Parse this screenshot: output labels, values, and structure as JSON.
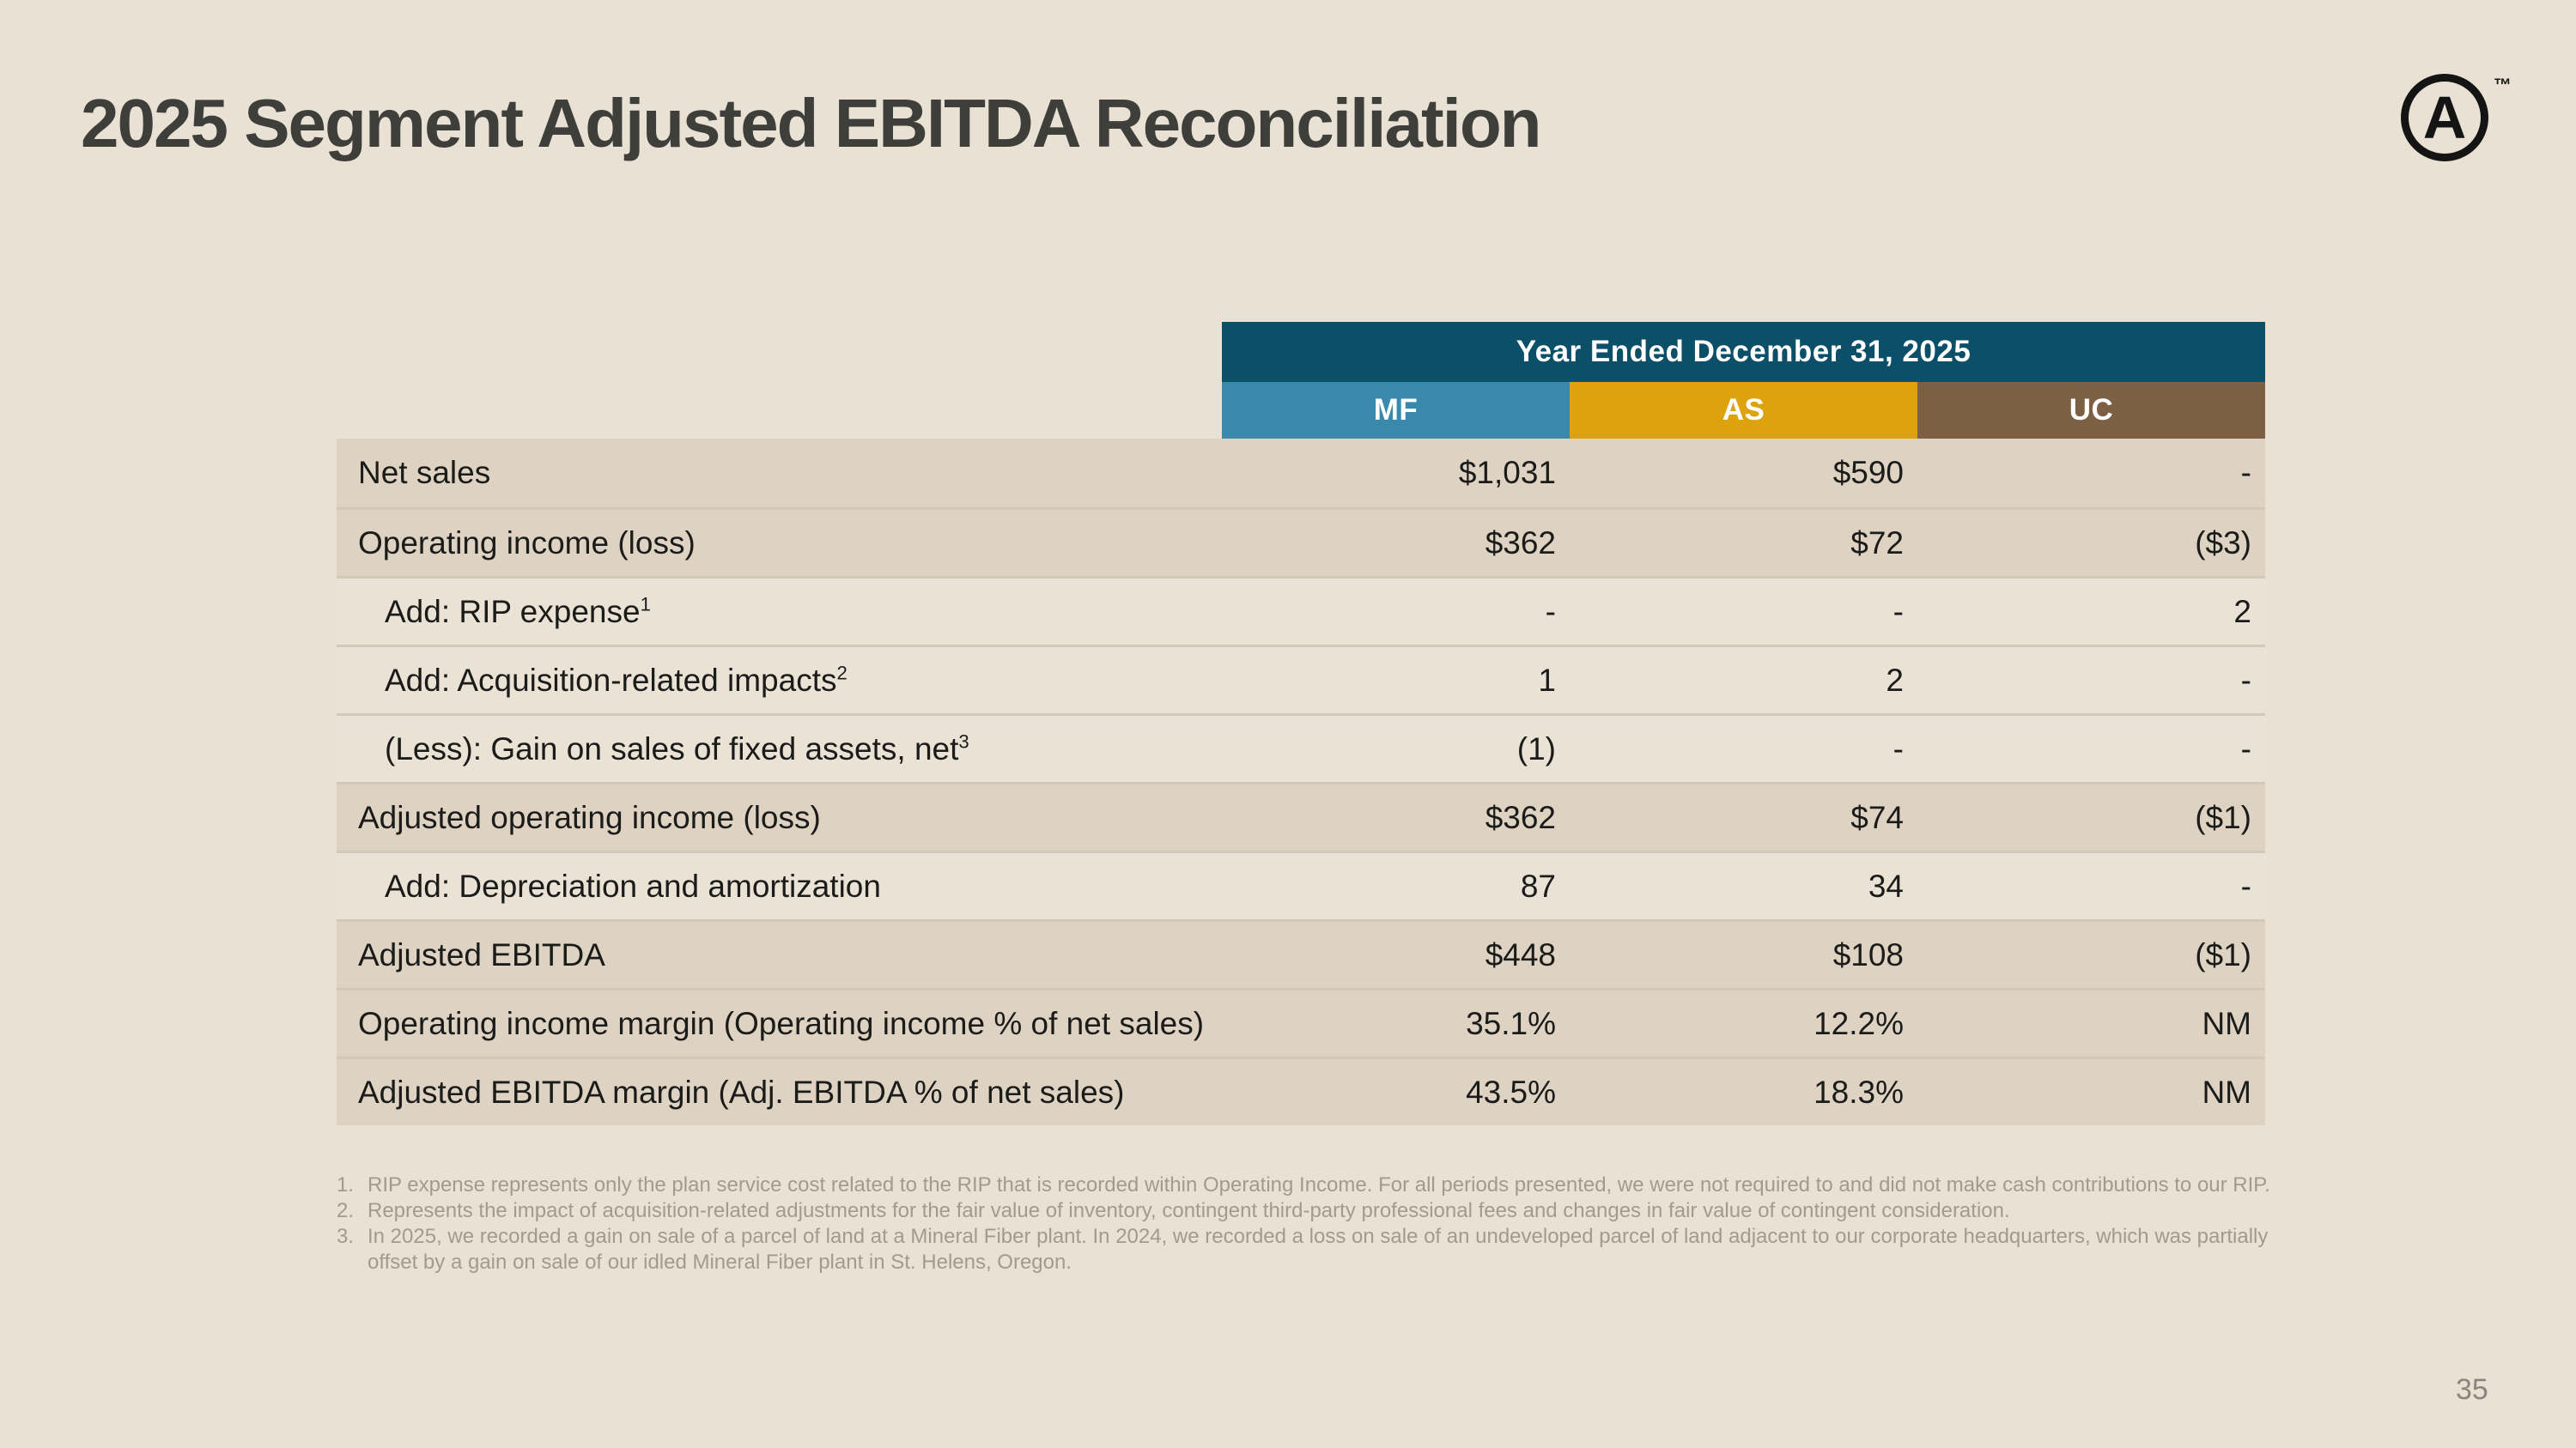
{
  "slide": {
    "title": "2025 Segment Adjusted EBITDA Reconciliation",
    "page_number": "35",
    "logo": {
      "letter": "A",
      "trademark": "™"
    },
    "colors": {
      "background": "#e9e2d4",
      "title_text": "#3e3e3b",
      "year_header": "#0b4f68",
      "row_dark": "#ded3c2",
      "row_light": "#eae3d5",
      "footnote_text": "#a19b8f"
    }
  },
  "table": {
    "year_header": "Year Ended December 31, 2025",
    "columns": [
      {
        "label": "MF",
        "color": "#3989ad"
      },
      {
        "label": "AS",
        "color": "#dfa20f"
      },
      {
        "label": "UC",
        "color": "#7d5f44"
      }
    ],
    "rows": [
      {
        "label": "Net sales",
        "ref": "",
        "mf": "$1,031",
        "as": "$590",
        "uc": "-"
      },
      {
        "label": "Operating income (loss)",
        "ref": "",
        "mf": "$362",
        "as": "$72",
        "uc": "($3)"
      },
      {
        "label": "Add: RIP expense",
        "ref": "1",
        "mf": "-",
        "as": "-",
        "uc": "2"
      },
      {
        "label": "Add: Acquisition-related impacts",
        "ref": "2",
        "mf": "1",
        "as": "2",
        "uc": "-"
      },
      {
        "label": "(Less): Gain on sales of fixed assets, net",
        "ref": "3",
        "mf": "(1)",
        "as": "-",
        "uc": "-"
      },
      {
        "label": "Adjusted operating income (loss)",
        "ref": "",
        "mf": "$362",
        "as": "$74",
        "uc": "($1)"
      },
      {
        "label": "Add: Depreciation and amortization",
        "ref": "",
        "mf": "87",
        "as": "34",
        "uc": "-"
      },
      {
        "label": "Adjusted EBITDA",
        "ref": "",
        "mf": "$448",
        "as": "$108",
        "uc": "($1)"
      },
      {
        "label": "Operating income margin (Operating income % of net sales)",
        "ref": "",
        "mf": "35.1%",
        "as": "12.2%",
        "uc": "NM"
      },
      {
        "label": "Adjusted EBITDA margin (Adj. EBITDA % of net sales)",
        "ref": "",
        "mf": "43.5%",
        "as": "18.3%",
        "uc": "NM"
      }
    ]
  },
  "footnotes": [
    {
      "num": "1.",
      "text": "RIP expense represents only the plan service cost related to the RIP that is recorded within Operating Income. For all periods presented, we were not required to and did not make cash contributions to our RIP."
    },
    {
      "num": "2.",
      "text": "Represents the impact of acquisition-related adjustments for the fair value of inventory, contingent third-party professional fees and changes in fair value of contingent consideration."
    },
    {
      "num": "3.",
      "text": "In 2025, we recorded a gain on sale of a parcel of land at a Mineral Fiber plant. In 2024, we recorded a loss on sale of an undeveloped parcel of land adjacent to our corporate headquarters, which was partially offset by a gain on sale of our idled Mineral Fiber plant in St. Helens, Oregon."
    }
  ]
}
